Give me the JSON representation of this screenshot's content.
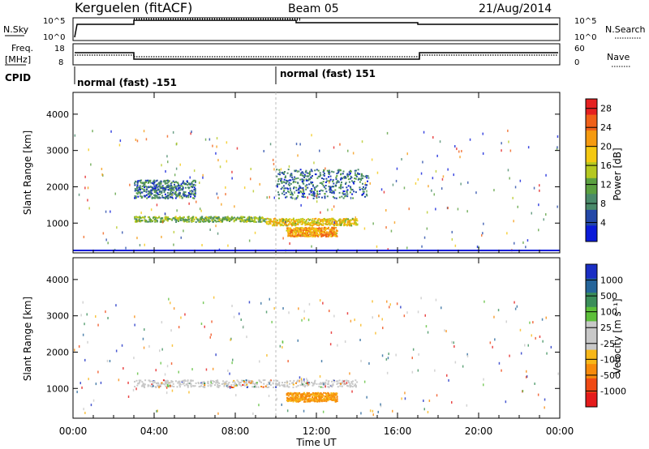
{
  "header": {
    "station": "Kerguelen (fitACF)",
    "beam": "Beam 05",
    "date": "21/Aug/2014"
  },
  "strips": {
    "nsky_label": "N.Sky",
    "nsky_ticks": [
      "10^5",
      "10^0"
    ],
    "nsearch_label": "N.Search",
    "nsearch_ticks": [
      "10^5",
      "10^0"
    ],
    "freq_label": "Freq.",
    "freq_unit": "[MHz]",
    "freq_ticks": [
      "18",
      "8"
    ],
    "nave_label": "Nave",
    "nave_ticks": [
      "60",
      "0"
    ],
    "cpid_label": "CPID",
    "cpid_segments": [
      "normal (fast) -151",
      "normal (fast) 151"
    ]
  },
  "colors": {
    "power": [
      "#0b1bd9",
      "#2448a8",
      "#4a8a6a",
      "#5ba040",
      "#b5c820",
      "#f4c812",
      "#f59a10",
      "#f06018",
      "#e52020"
    ],
    "velocity": [
      "#e51b1b",
      "#f04a14",
      "#f78a0a",
      "#f7b718",
      "#c8c8c8",
      "#c8c8c8",
      "#5dbf3a",
      "#3b8e5a",
      "#25659a",
      "#1a2ec4"
    ]
  },
  "chart_data": [
    {
      "type": "heatmap",
      "title": "",
      "xlabel": "Time UT",
      "ylabel": "Slant Range [km]",
      "x_ticks": [
        "00:00",
        "04:00",
        "08:00",
        "12:00",
        "16:00",
        "20:00",
        "00:00"
      ],
      "xlim": [
        0,
        24
      ],
      "ylim": [
        180,
        4600
      ],
      "y_ticks": [
        1000,
        2000,
        3000,
        4000
      ],
      "colorbar_label": "Power [dB]",
      "colorbar_ticks": [
        "4",
        "8",
        "12",
        "16",
        "20",
        "24",
        "28"
      ],
      "colorbar_range": [
        0,
        30
      ],
      "features": [
        {
          "t0": 3.0,
          "t1": 9.5,
          "r0": 1050,
          "r1": 1200,
          "level": 12
        },
        {
          "t0": 9.5,
          "t1": 14.0,
          "r0": 950,
          "r1": 1150,
          "level": 18
        },
        {
          "t0": 10.5,
          "t1": 13.0,
          "r0": 650,
          "r1": 900,
          "level": 22
        },
        {
          "t0": 3.0,
          "t1": 6.0,
          "r0": 1700,
          "r1": 2200,
          "level": 6
        },
        {
          "t0": 10.0,
          "t1": 14.5,
          "r0": 1700,
          "r1": 2500,
          "level": 6
        }
      ]
    },
    {
      "type": "heatmap",
      "title": "",
      "xlabel": "Time UT",
      "ylabel": "Slant Range [km]",
      "x_ticks": [
        "00:00",
        "04:00",
        "08:00",
        "12:00",
        "16:00",
        "20:00",
        "00:00"
      ],
      "xlim": [
        0,
        24
      ],
      "ylim": [
        180,
        4600
      ],
      "y_ticks": [
        1000,
        2000,
        3000,
        4000
      ],
      "colorbar_label": "Velocity [m s⁻¹]",
      "colorbar_ticks": [
        "1000",
        "500",
        "100",
        "25",
        "-25",
        "-100",
        "-500",
        "-1000"
      ],
      "features": [
        {
          "t0": 3.0,
          "t1": 14.0,
          "r0": 1050,
          "r1": 1250,
          "value": 0
        },
        {
          "t0": 10.5,
          "t1": 13.0,
          "r0": 650,
          "r1": 900,
          "value": -300
        }
      ]
    }
  ]
}
